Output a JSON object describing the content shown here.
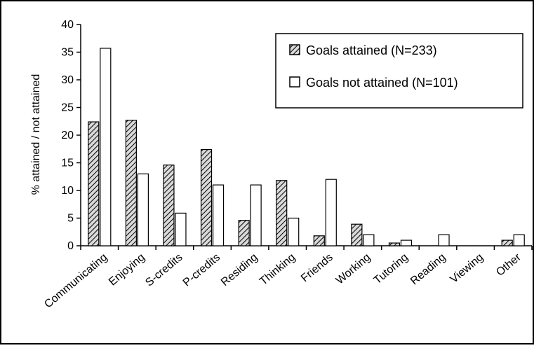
{
  "chart_data": {
    "type": "bar",
    "categories": [
      "Communicating",
      "Enjoying",
      "S-credits",
      "P-credits",
      "Residing",
      "Thinking",
      "Friends",
      "Working",
      "Tutoring",
      "Reading",
      "Viewing",
      "Other"
    ],
    "series": [
      {
        "name": "Goals attained (N=233)",
        "values": [
          22.4,
          22.7,
          14.6,
          17.4,
          4.6,
          11.8,
          1.8,
          3.9,
          0.5,
          0,
          0,
          1.0
        ],
        "fill": "hatched"
      },
      {
        "name": "Goals not attained (N=101)",
        "values": [
          35.7,
          13.0,
          5.9,
          11.0,
          11.0,
          5.0,
          12.0,
          2.0,
          1.0,
          2.0,
          0,
          2.0
        ],
        "fill": "white"
      }
    ],
    "title": "",
    "xlabel": "",
    "ylabel": "% attained / not attained",
    "ylim": [
      0,
      40
    ],
    "yticks": [
      "0",
      "5",
      "10",
      "15",
      "20",
      "25",
      "30",
      "35",
      "40"
    ],
    "grid": false,
    "legend_position": "top-right",
    "colors": {
      "bar_stroke": "#000000",
      "hatch_bg": "#d9d9d9",
      "hatch_line": "#000000",
      "plain_fill": "#ffffff"
    }
  }
}
